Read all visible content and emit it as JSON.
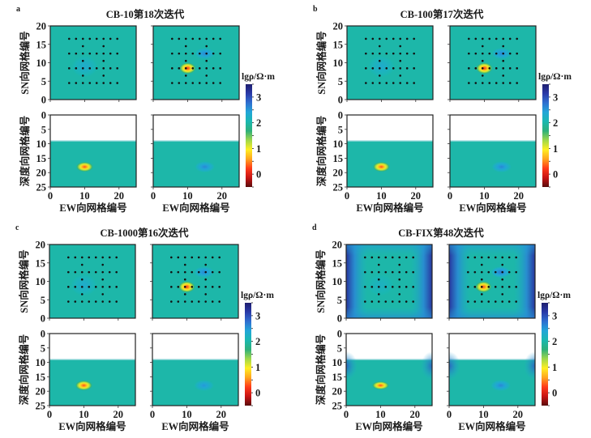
{
  "chart_data": {
    "type": "heatmap",
    "colorbar": {
      "label": "lgρ/Ω·m",
      "range": [
        -0.5,
        3.5
      ],
      "ticks": [
        0,
        1,
        2,
        3
      ],
      "colormap": "jet",
      "stops": [
        "#5a0d0d",
        "#c81414",
        "#ff3a1a",
        "#ffa51e",
        "#ffee22",
        "#9fd84a",
        "#2fb07a",
        "#1ab8b0",
        "#22a6d8",
        "#2f6fd0",
        "#2a3aa8",
        "#1e1e6e"
      ]
    },
    "background_value": 2.0,
    "plan_axes": {
      "xlabel": "EW向网格编号",
      "ylabel": "SN向网格编号",
      "xlim": [
        0,
        25
      ],
      "ylim": [
        0,
        20
      ],
      "xticks": [
        0,
        10,
        20
      ],
      "yticks": [
        0,
        5,
        10,
        15,
        20
      ]
    },
    "section_axes": {
      "xlabel": "EW向网格编号",
      "ylabel": "深度向网格编号",
      "xlim": [
        0,
        25
      ],
      "ylim": [
        25,
        0
      ],
      "xticks": [
        0,
        10,
        20
      ],
      "yticks": [
        0,
        5,
        10,
        15,
        20,
        25
      ],
      "air_above_depth": 9
    },
    "stations": {
      "full_rows_y": [
        4.5,
        8.5,
        12.5,
        16.5
      ],
      "full_rows_x": [
        5.5,
        7.5,
        9.5,
        11.5,
        13.5,
        15.5,
        17.5,
        19.5
      ],
      "partial_rows_y": [
        6.5,
        10.5,
        14.5
      ],
      "partial_rows_x": [
        9.5,
        15.5
      ]
    },
    "panels": [
      {
        "letter": "a",
        "title": "CB-10第18次迭代",
        "subplots": [
          {
            "view": "plan",
            "edge_effect": false,
            "anomalies": [
              {
                "x": 10,
                "y": 9,
                "value": 2.3,
                "rx": 4,
                "ry": 3
              }
            ]
          },
          {
            "view": "plan",
            "edge_effect": false,
            "anomalies": [
              {
                "x": 10,
                "y": 8.5,
                "value": 0.2,
                "rx": 2.5,
                "ry": 1.6
              },
              {
                "x": 15,
                "y": 12.5,
                "value": 2.6,
                "rx": 3,
                "ry": 1.6
              }
            ]
          },
          {
            "view": "section",
            "edge_effect": false,
            "anomalies": [
              {
                "x": 10,
                "y": 18,
                "value": 0.3,
                "rx": 2.6,
                "ry": 1.8
              }
            ]
          },
          {
            "view": "section",
            "edge_effect": false,
            "anomalies": [
              {
                "x": 15,
                "y": 18,
                "value": 2.6,
                "rx": 3,
                "ry": 2
              }
            ]
          }
        ]
      },
      {
        "letter": "b",
        "title": "CB-100第17次迭代",
        "subplots": [
          {
            "view": "plan",
            "edge_effect": false,
            "anomalies": [
              {
                "x": 10,
                "y": 9,
                "value": 2.3,
                "rx": 4,
                "ry": 3
              }
            ]
          },
          {
            "view": "plan",
            "edge_effect": false,
            "anomalies": [
              {
                "x": 10,
                "y": 8.5,
                "value": 0.2,
                "rx": 2.5,
                "ry": 1.6
              },
              {
                "x": 15,
                "y": 12.5,
                "value": 2.6,
                "rx": 3,
                "ry": 1.6
              }
            ]
          },
          {
            "view": "section",
            "edge_effect": false,
            "anomalies": [
              {
                "x": 10,
                "y": 18,
                "value": 0.3,
                "rx": 2.6,
                "ry": 1.8
              }
            ]
          },
          {
            "view": "section",
            "edge_effect": false,
            "anomalies": [
              {
                "x": 15,
                "y": 18,
                "value": 2.6,
                "rx": 3,
                "ry": 2
              }
            ]
          }
        ]
      },
      {
        "letter": "c",
        "title": "CB-1000第16次迭代",
        "subplots": [
          {
            "view": "plan",
            "edge_effect": false,
            "anomalies": [
              {
                "x": 10,
                "y": 9,
                "value": 2.3,
                "rx": 4,
                "ry": 3
              }
            ]
          },
          {
            "view": "plan",
            "edge_effect": false,
            "anomalies": [
              {
                "x": 10,
                "y": 8.5,
                "value": 0.2,
                "rx": 2.5,
                "ry": 1.6
              },
              {
                "x": 15,
                "y": 12.5,
                "value": 2.6,
                "rx": 3,
                "ry": 1.6
              }
            ]
          },
          {
            "view": "section",
            "edge_effect": false,
            "anomalies": [
              {
                "x": 10,
                "y": 18,
                "value": 0.3,
                "rx": 2.6,
                "ry": 1.8
              }
            ]
          },
          {
            "view": "section",
            "edge_effect": false,
            "anomalies": [
              {
                "x": 15,
                "y": 18,
                "value": 2.5,
                "rx": 3,
                "ry": 2
              }
            ]
          }
        ]
      },
      {
        "letter": "d",
        "title": "CB-FIX第48次迭代",
        "subplots": [
          {
            "view": "plan",
            "edge_effect": true,
            "anomalies": [
              {
                "x": 10,
                "y": 9,
                "value": 2.2,
                "rx": 4,
                "ry": 3
              }
            ]
          },
          {
            "view": "plan",
            "edge_effect": true,
            "anomalies": [
              {
                "x": 10,
                "y": 8.5,
                "value": 0.3,
                "rx": 2.5,
                "ry": 1.6
              },
              {
                "x": 15,
                "y": 12.5,
                "value": 2.7,
                "rx": 3,
                "ry": 1.6
              }
            ]
          },
          {
            "view": "section",
            "edge_effect": true,
            "anomalies": [
              {
                "x": 10,
                "y": 18,
                "value": 0.3,
                "rx": 2.6,
                "ry": 1.5
              }
            ]
          },
          {
            "view": "section",
            "edge_effect": true,
            "anomalies": [
              {
                "x": 15,
                "y": 18,
                "value": 2.6,
                "rx": 3,
                "ry": 2
              }
            ]
          }
        ]
      }
    ]
  }
}
